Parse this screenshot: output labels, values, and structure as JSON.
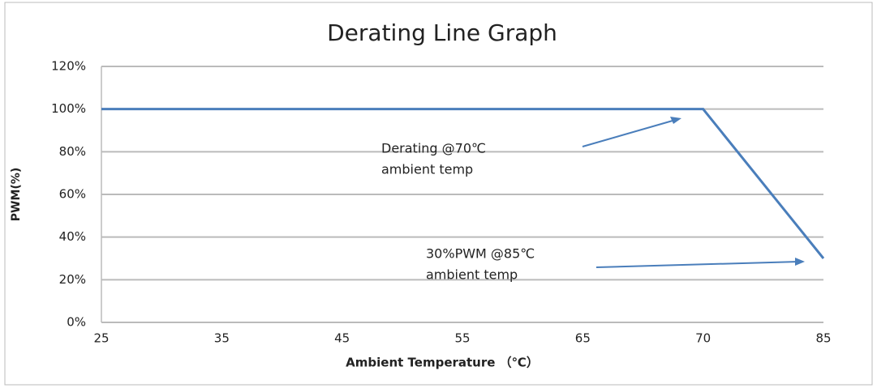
{
  "chart_data": {
    "type": "line",
    "title": "Derating Line Graph",
    "x_label": "Ambient Temperature （℃）",
    "y_label": "PWM(%)",
    "categories": [
      "25",
      "35",
      "45",
      "55",
      "65",
      "70",
      "85"
    ],
    "series": [
      {
        "name": "PWM",
        "color": "#4a7ebb",
        "values": [
          100,
          100,
          100,
          100,
          100,
          100,
          30
        ]
      }
    ],
    "ylim": [
      0,
      120
    ],
    "yticks": [
      {
        "value": 0,
        "label": "0%"
      },
      {
        "value": 20,
        "label": "20%"
      },
      {
        "value": 40,
        "label": "40%"
      },
      {
        "value": 60,
        "label": "60%"
      },
      {
        "value": 80,
        "label": "80%"
      },
      {
        "value": 100,
        "label": "100%"
      },
      {
        "value": 120,
        "label": "120%"
      }
    ],
    "grid": true,
    "annotations": [
      [
        "Derating @70℃",
        "ambient  temp"
      ],
      [
        "30%PWM @85℃",
        "ambient  temp"
      ]
    ]
  }
}
